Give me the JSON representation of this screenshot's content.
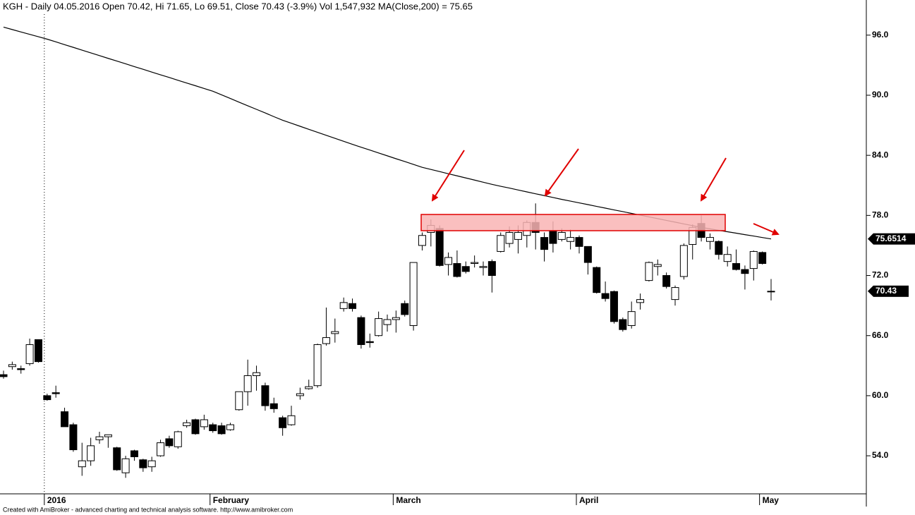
{
  "chart_data": {
    "type": "candlestick",
    "title": "KGH - Daily 04.05.2016 Open 70.42, Hi 71.65, Lo 69.51, Close 70.43 (-3.9%) Vol 1,547,932 MA(Close,200) = 75.65",
    "footer": "Created with AmiBroker - advanced charting and technical analysis software. http://www.amibroker.com",
    "categories": [
      null,
      null,
      null,
      null,
      null,
      "2016",
      null,
      null,
      null,
      null,
      null,
      null,
      null,
      null,
      null,
      null,
      null,
      null,
      null,
      null,
      null,
      null,
      null,
      null,
      "February",
      null,
      null,
      null,
      null,
      null,
      null,
      null,
      null,
      null,
      null,
      null,
      null,
      null,
      null,
      null,
      null,
      null,
      null,
      null,
      null,
      "March",
      null,
      null,
      null,
      null,
      null,
      null,
      null,
      null,
      null,
      null,
      null,
      null,
      null,
      null,
      null,
      null,
      null,
      null,
      null,
      null,
      "April",
      null,
      null,
      null,
      null,
      null,
      null,
      null,
      null,
      null,
      null,
      null,
      null,
      null,
      null,
      null,
      null,
      null,
      null,
      null,
      null,
      "May",
      null
    ],
    "open": [
      62.1,
      62.9,
      62.7,
      63.2,
      65.6,
      60.0,
      60.3,
      58.4,
      57.1,
      52.9,
      53.5,
      55.6,
      55.9,
      54.8,
      52.3,
      54.5,
      53.6,
      52.9,
      54.0,
      55.7,
      54.9,
      57.0,
      57.6,
      56.9,
      57.1,
      57.0,
      56.6,
      58.6,
      60.4,
      62.0,
      61.0,
      59.2,
      57.8,
      57.1,
      60.0,
      60.7,
      61.0,
      65.2,
      66.2,
      68.7,
      69.2,
      67.8,
      65.4,
      66.0,
      67.1,
      67.6,
      69.2,
      67.0,
      75.0,
      76.3,
      76.7,
      73.1,
      73.2,
      72.9,
      73.2,
      72.8,
      73.4,
      74.4,
      75.2,
      75.6,
      76.0,
      77.3,
      75.8,
      76.5,
      75.6,
      75.4,
      75.8,
      74.9,
      72.8,
      70.2,
      70.4,
      67.6,
      67.0,
      69.3,
      71.5,
      72.9,
      72.0,
      69.6,
      71.9,
      75.1,
      77.2,
      75.4,
      75.4,
      73.4,
      73.2,
      72.6,
      72.7,
      74.3,
      70.42
    ],
    "high": [
      62.5,
      63.4,
      63.0,
      65.7,
      65.6,
      60.2,
      61.0,
      58.8,
      57.3,
      55.3,
      55.8,
      56.4,
      56.1,
      54.9,
      54.0,
      54.6,
      53.7,
      53.9,
      55.6,
      56.0,
      56.5,
      57.6,
      57.7,
      58.1,
      57.3,
      57.3,
      57.3,
      60.4,
      63.6,
      63.0,
      61.3,
      59.8,
      58.0,
      59.0,
      60.8,
      61.6,
      65.2,
      68.8,
      67.7,
      69.8,
      69.7,
      68.0,
      66.2,
      68.4,
      68.1,
      68.5,
      69.5,
      73.3,
      76.3,
      77.6,
      77.0,
      74.3,
      74.5,
      73.4,
      74.0,
      73.4,
      73.6,
      76.3,
      76.9,
      77.0,
      77.5,
      79.2,
      76.3,
      77.4,
      76.7,
      76.6,
      76.0,
      74.9,
      72.9,
      71.4,
      70.5,
      67.8,
      69.4,
      70.2,
      73.4,
      73.6,
      72.3,
      71.0,
      75.2,
      77.1,
      78.0,
      76.2,
      75.5,
      74.9,
      74.6,
      73.0,
      74.5,
      74.4,
      71.65
    ],
    "low": [
      61.7,
      62.6,
      62.2,
      63.0,
      63.3,
      59.5,
      59.8,
      56.9,
      54.4,
      52.0,
      53.0,
      55.2,
      54.8,
      52.5,
      51.8,
      53.5,
      52.4,
      52.4,
      53.9,
      54.8,
      54.7,
      56.8,
      56.1,
      56.6,
      56.3,
      56.1,
      56.5,
      58.5,
      59.0,
      60.5,
      58.5,
      58.3,
      56.0,
      57.0,
      59.6,
      60.6,
      60.8,
      65.0,
      65.3,
      68.4,
      68.4,
      64.7,
      64.8,
      65.9,
      66.4,
      66.3,
      67.9,
      66.5,
      74.5,
      74.9,
      72.9,
      72.0,
      71.8,
      72.2,
      72.8,
      72.0,
      70.3,
      74.3,
      74.8,
      74.2,
      74.8,
      74.6,
      73.4,
      74.3,
      75.4,
      74.6,
      74.2,
      72.1,
      70.2,
      69.4,
      67.2,
      66.4,
      66.7,
      68.6,
      71.4,
      72.0,
      70.7,
      69.0,
      71.6,
      73.6,
      75.4,
      74.6,
      73.6,
      72.9,
      72.5,
      70.6,
      71.5,
      73.1,
      69.51
    ],
    "close": [
      61.9,
      63.1,
      62.6,
      65.1,
      63.4,
      59.6,
      60.2,
      56.9,
      54.6,
      53.5,
      55.0,
      55.9,
      56.1,
      52.6,
      53.7,
      53.9,
      52.8,
      53.5,
      55.3,
      55.0,
      56.4,
      57.3,
      56.2,
      57.6,
      56.5,
      56.2,
      57.1,
      60.4,
      62.0,
      62.3,
      59.0,
      58.7,
      56.8,
      58.0,
      60.2,
      60.9,
      65.1,
      65.8,
      66.4,
      69.3,
      68.7,
      65.1,
      65.3,
      67.7,
      67.6,
      67.8,
      68.1,
      73.3,
      76.0,
      77.0,
      73.0,
      73.8,
      71.9,
      72.4,
      73.3,
      72.9,
      72.0,
      76.0,
      76.3,
      76.3,
      77.3,
      76.3,
      74.6,
      75.2,
      76.3,
      75.8,
      74.9,
      73.3,
      70.3,
      69.7,
      67.4,
      66.6,
      68.4,
      69.6,
      73.3,
      73.1,
      70.9,
      70.8,
      75.0,
      76.8,
      75.8,
      75.8,
      74.1,
      74.1,
      72.6,
      72.2,
      74.4,
      73.2,
      70.43
    ],
    "ma": [
      96.8,
      96.56,
      96.32,
      96.08,
      95.84,
      95.6,
      95.33,
      95.05,
      94.78,
      94.5,
      94.23,
      93.96,
      93.68,
      93.41,
      93.14,
      92.86,
      92.59,
      92.31,
      92.04,
      91.77,
      91.49,
      91.22,
      90.95,
      90.67,
      90.4,
      90.04,
      89.68,
      89.31,
      88.95,
      88.59,
      88.23,
      87.86,
      87.5,
      87.2,
      86.9,
      86.6,
      86.3,
      86.0,
      85.7,
      85.4,
      85.1,
      84.81,
      84.53,
      84.24,
      83.95,
      83.66,
      83.38,
      83.09,
      82.8,
      82.59,
      82.38,
      82.16,
      81.95,
      81.74,
      81.53,
      81.31,
      81.1,
      80.91,
      80.73,
      80.54,
      80.35,
      80.16,
      79.98,
      79.79,
      79.6,
      79.43,
      79.25,
      79.08,
      78.9,
      78.73,
      78.55,
      78.38,
      78.2,
      78.03,
      77.85,
      77.68,
      77.5,
      77.33,
      77.15,
      76.98,
      76.8,
      76.66,
      76.51,
      76.37,
      76.23,
      76.08,
      75.94,
      75.79,
      75.65
    ],
    "ma_last": 75.6514,
    "last_close": 70.43,
    "ylim": [
      50.2,
      98.1
    ],
    "yticks": [
      {
        "value": 54,
        "label": "54.0"
      },
      {
        "value": 60,
        "label": "60.0"
      },
      {
        "value": 66,
        "label": "66.0"
      },
      {
        "value": 72,
        "label": "72.0"
      },
      {
        "value": 78,
        "label": "78.0"
      },
      {
        "value": 84,
        "label": "84.0"
      },
      {
        "value": 90,
        "label": "90.0"
      },
      {
        "value": 96,
        "label": "96.0"
      }
    ]
  }
}
